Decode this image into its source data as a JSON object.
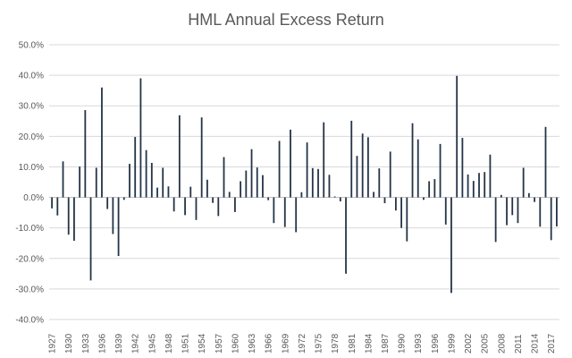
{
  "chart_data": {
    "type": "bar",
    "title": "HML Annual Excess Return",
    "xlabel": "",
    "ylabel": "",
    "ylim": [
      -0.4,
      0.5
    ],
    "yticks": [
      0.5,
      0.4,
      0.3,
      0.2,
      0.1,
      0.0,
      -0.1,
      -0.2,
      -0.3,
      -0.4
    ],
    "ytick_labels": [
      "50.0%",
      "40.0%",
      "30.0%",
      "20.0%",
      "10.0%",
      "0.0%",
      "-10.0%",
      "-20.0%",
      "-30.0%",
      "-40.0%"
    ],
    "x_tick_labels": [
      "1927",
      "1930",
      "1933",
      "1936",
      "1939",
      "1942",
      "1945",
      "1948",
      "1951",
      "1954",
      "1957",
      "1960",
      "1963",
      "1966",
      "1969",
      "1972",
      "1975",
      "1978",
      "1981",
      "1984",
      "1987",
      "1990",
      "1993",
      "1996",
      "1999",
      "2002",
      "2005",
      "2008",
      "2011",
      "2014",
      "2017"
    ],
    "grid": true,
    "legend": "none",
    "bar_color": "#243447",
    "start_year": 1927,
    "categories": [
      "1927",
      "1928",
      "1929",
      "1930",
      "1931",
      "1932",
      "1933",
      "1934",
      "1935",
      "1936",
      "1937",
      "1938",
      "1939",
      "1940",
      "1941",
      "1942",
      "1943",
      "1944",
      "1945",
      "1946",
      "1947",
      "1948",
      "1949",
      "1950",
      "1951",
      "1952",
      "1953",
      "1954",
      "1955",
      "1956",
      "1957",
      "1958",
      "1959",
      "1960",
      "1961",
      "1962",
      "1963",
      "1964",
      "1965",
      "1966",
      "1967",
      "1968",
      "1969",
      "1970",
      "1971",
      "1972",
      "1973",
      "1974",
      "1975",
      "1976",
      "1977",
      "1978",
      "1979",
      "1980",
      "1981",
      "1982",
      "1983",
      "1984",
      "1985",
      "1986",
      "1987",
      "1988",
      "1989",
      "1990",
      "1991",
      "1992",
      "1993",
      "1994",
      "1995",
      "1996",
      "1997",
      "1998",
      "1999",
      "2000",
      "2001",
      "2002",
      "2003",
      "2004",
      "2005",
      "2006",
      "2007",
      "2008",
      "2009",
      "2010",
      "2011",
      "2012",
      "2013",
      "2014",
      "2015",
      "2016",
      "2017",
      "2018"
    ],
    "values": [
      -0.036,
      -0.059,
      0.118,
      -0.122,
      -0.142,
      0.101,
      0.286,
      -0.272,
      0.097,
      0.36,
      -0.038,
      -0.12,
      -0.192,
      -0.008,
      0.11,
      0.198,
      0.39,
      0.155,
      0.113,
      0.032,
      0.097,
      0.036,
      -0.046,
      0.269,
      -0.058,
      0.035,
      -0.074,
      0.262,
      0.058,
      -0.018,
      -0.061,
      0.132,
      0.018,
      -0.048,
      0.053,
      0.088,
      0.158,
      0.098,
      0.073,
      -0.009,
      -0.084,
      0.185,
      -0.097,
      0.222,
      -0.114,
      0.017,
      0.18,
      0.096,
      0.093,
      0.246,
      0.074,
      0.003,
      -0.013,
      -0.25,
      0.251,
      0.136,
      0.209,
      0.197,
      0.018,
      0.095,
      -0.019,
      0.15,
      -0.043,
      -0.1,
      -0.144,
      0.243,
      0.19,
      -0.008,
      0.053,
      0.06,
      0.175,
      -0.089,
      -0.313,
      0.398,
      0.195,
      0.075,
      0.054,
      0.08,
      0.083,
      0.14,
      -0.146,
      0.008,
      -0.091,
      -0.058,
      -0.084,
      0.097,
      0.014,
      -0.015,
      -0.096,
      0.231,
      -0.14,
      -0.095
    ]
  }
}
